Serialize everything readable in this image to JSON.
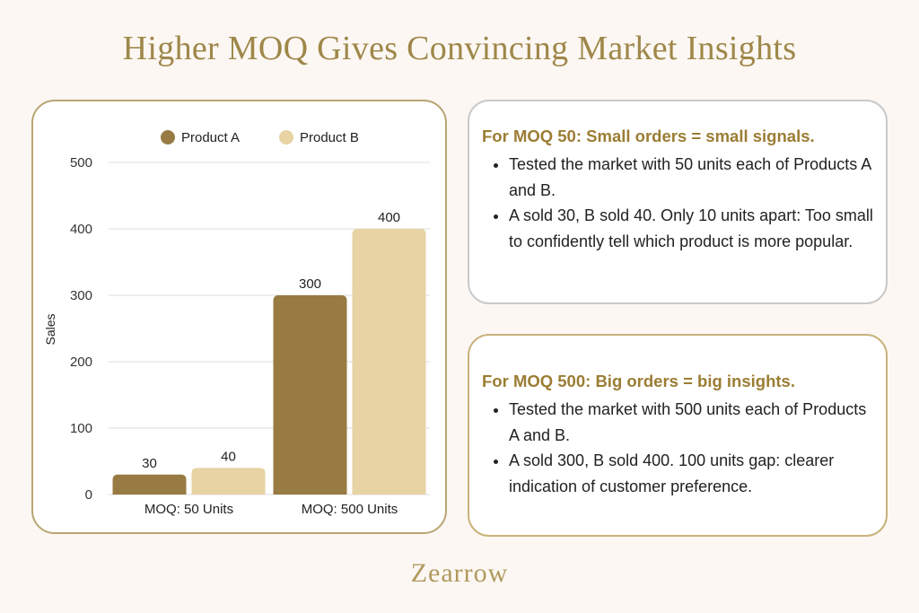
{
  "title": "Higher MOQ Gives Convincing Market Insights",
  "colors": {
    "product_a": "#977b42",
    "product_b": "#e7d3a3",
    "accent": "#9e8749",
    "background": "#fcf7f3"
  },
  "chart_data": {
    "type": "bar",
    "categories": [
      "MOQ: 50 Units",
      "MOQ: 500 Units"
    ],
    "series": [
      {
        "name": "Product A",
        "values": [
          30,
          300
        ]
      },
      {
        "name": "Product B",
        "values": [
          40,
          400
        ]
      }
    ],
    "ylabel": "Sales",
    "xlabel": "",
    "ylim": [
      0,
      500
    ],
    "yticks": [
      0,
      100,
      200,
      300,
      400,
      500
    ],
    "grid": true,
    "legend": "top-center",
    "data_labels": true
  },
  "cards": [
    {
      "heading": "For MOQ 50: Small orders = small signals.",
      "points": [
        "Tested the market with 50 units each of Products A and B.",
        "A sold 30, B sold 40. Only 10 units apart: Too small to confidently tell which product is more popular."
      ]
    },
    {
      "heading": "For MOQ 500: Big orders = big insights.",
      "points": [
        "Tested the market with 500 units each of Products A and B.",
        "A sold 300, B sold 400. 100 units gap:  clearer indication of customer preference."
      ]
    }
  ],
  "brand": "Zearrow"
}
